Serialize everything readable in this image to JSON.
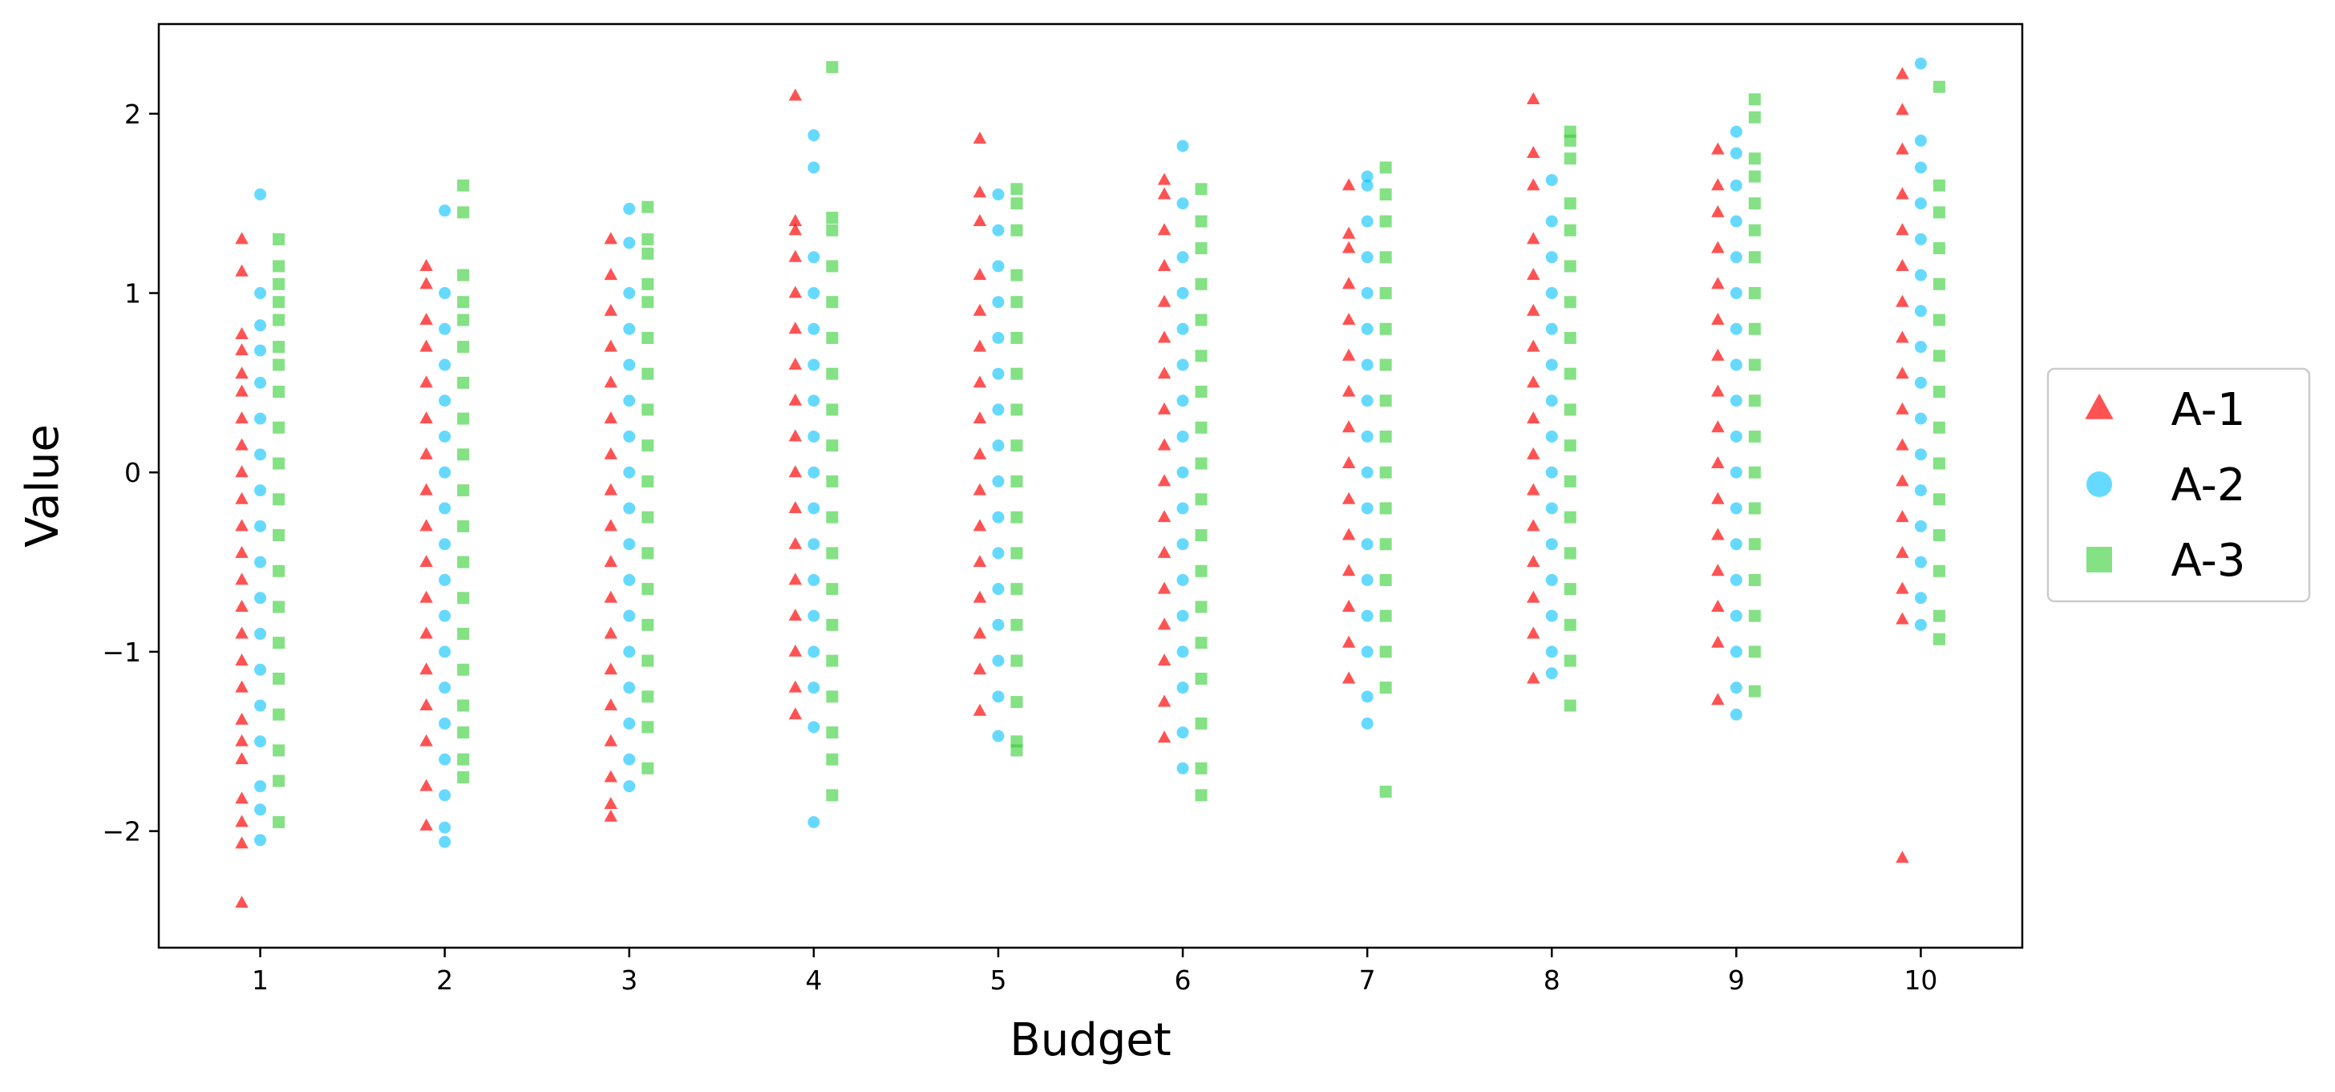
{
  "chart_data": {
    "type": "scatter",
    "title": "",
    "xlabel": "Budget",
    "ylabel": "Value",
    "x_ticks": [
      1,
      2,
      3,
      4,
      5,
      6,
      7,
      8,
      9,
      10
    ],
    "x_tick_labels": [
      "1",
      "2",
      "3",
      "4",
      "5",
      "6",
      "7",
      "8",
      "9",
      "10"
    ],
    "y_ticks": [
      2,
      1,
      0,
      -1,
      -2
    ],
    "y_tick_labels": [
      "2",
      "1",
      "0",
      "−1",
      "−2"
    ],
    "xlim": [
      0.45,
      10.55
    ],
    "ylim": [
      -2.65,
      2.5
    ],
    "grid": false,
    "legend_position": "center-right-outside",
    "series": [
      {
        "name": "A-1",
        "marker": "triangle",
        "color": "#FF0000",
        "x_offset": -0.1,
        "points": [
          {
            "x": 1,
            "y": [
              -2.4,
              -2.07,
              -1.95,
              -1.82,
              -1.6,
              -1.5,
              -1.38,
              -1.2,
              -1.05,
              -0.9,
              -0.75,
              -0.6,
              -0.45,
              -0.3,
              -0.15,
              0.0,
              0.15,
              0.3,
              0.45,
              0.55,
              0.68,
              0.77,
              1.12,
              1.3
            ]
          },
          {
            "x": 2,
            "y": [
              -1.97,
              -1.75,
              -1.5,
              -1.3,
              -1.1,
              -0.9,
              -0.7,
              -0.5,
              -0.3,
              -0.1,
              0.1,
              0.3,
              0.5,
              0.7,
              0.85,
              1.05,
              1.15
            ]
          },
          {
            "x": 3,
            "y": [
              -1.92,
              -1.85,
              -1.7,
              -1.5,
              -1.3,
              -1.1,
              -0.9,
              -0.7,
              -0.5,
              -0.3,
              -0.1,
              0.1,
              0.3,
              0.5,
              0.7,
              0.9,
              1.1,
              1.3
            ]
          },
          {
            "x": 4,
            "y": [
              -1.35,
              -1.2,
              -1.0,
              -0.8,
              -0.6,
              -0.4,
              -0.2,
              0.0,
              0.2,
              0.4,
              0.6,
              0.8,
              1.0,
              1.2,
              1.35,
              1.4,
              2.1
            ]
          },
          {
            "x": 5,
            "y": [
              -1.33,
              -1.1,
              -0.9,
              -0.7,
              -0.5,
              -0.3,
              -0.1,
              0.1,
              0.3,
              0.5,
              0.7,
              0.9,
              1.1,
              1.4,
              1.56,
              1.86
            ]
          },
          {
            "x": 6,
            "y": [
              -1.48,
              -1.28,
              -1.05,
              -0.85,
              -0.65,
              -0.45,
              -0.25,
              -0.05,
              0.15,
              0.35,
              0.55,
              0.75,
              0.95,
              1.15,
              1.35,
              1.55,
              1.63
            ]
          },
          {
            "x": 7,
            "y": [
              -1.15,
              -0.95,
              -0.75,
              -0.55,
              -0.35,
              -0.15,
              0.05,
              0.25,
              0.45,
              0.65,
              0.85,
              1.05,
              1.25,
              1.33,
              1.6
            ]
          },
          {
            "x": 8,
            "y": [
              -1.15,
              -0.9,
              -0.7,
              -0.5,
              -0.3,
              -0.1,
              0.1,
              0.3,
              0.5,
              0.7,
              0.9,
              1.1,
              1.3,
              1.6,
              1.78,
              2.08
            ]
          },
          {
            "x": 9,
            "y": [
              -1.27,
              -0.95,
              -0.75,
              -0.55,
              -0.35,
              -0.15,
              0.05,
              0.25,
              0.45,
              0.65,
              0.85,
              1.05,
              1.25,
              1.45,
              1.6,
              1.8
            ]
          },
          {
            "x": 10,
            "y": [
              -2.15,
              -0.82,
              -0.65,
              -0.45,
              -0.25,
              -0.05,
              0.15,
              0.35,
              0.55,
              0.75,
              0.95,
              1.15,
              1.35,
              1.55,
              1.8,
              2.02,
              2.22
            ]
          }
        ]
      },
      {
        "name": "A-2",
        "marker": "circle",
        "color": "#00BFFF",
        "x_offset": 0.0,
        "points": [
          {
            "x": 1,
            "y": [
              -2.05,
              -1.88,
              -1.75,
              -1.5,
              -1.3,
              -1.1,
              -0.9,
              -0.7,
              -0.5,
              -0.3,
              -0.1,
              0.1,
              0.3,
              0.5,
              0.68,
              0.82,
              1.0,
              1.55
            ]
          },
          {
            "x": 2,
            "y": [
              -2.06,
              -1.98,
              -1.8,
              -1.6,
              -1.4,
              -1.2,
              -1.0,
              -0.8,
              -0.6,
              -0.4,
              -0.2,
              0.0,
              0.2,
              0.4,
              0.6,
              0.8,
              1.0,
              1.46
            ]
          },
          {
            "x": 3,
            "y": [
              -1.75,
              -1.6,
              -1.4,
              -1.2,
              -1.0,
              -0.8,
              -0.6,
              -0.4,
              -0.2,
              0.0,
              0.2,
              0.4,
              0.6,
              0.8,
              1.0,
              1.28,
              1.47
            ]
          },
          {
            "x": 4,
            "y": [
              -1.95,
              -1.42,
              -1.2,
              -1.0,
              -0.8,
              -0.6,
              -0.4,
              -0.2,
              0.0,
              0.2,
              0.4,
              0.6,
              0.8,
              1.0,
              1.2,
              1.7,
              1.88
            ]
          },
          {
            "x": 5,
            "y": [
              -1.47,
              -1.25,
              -1.05,
              -0.85,
              -0.65,
              -0.45,
              -0.25,
              -0.05,
              0.15,
              0.35,
              0.55,
              0.75,
              0.95,
              1.15,
              1.35,
              1.55
            ]
          },
          {
            "x": 6,
            "y": [
              -1.65,
              -1.45,
              -1.2,
              -1.0,
              -0.8,
              -0.6,
              -0.4,
              -0.2,
              0.0,
              0.2,
              0.4,
              0.6,
              0.8,
              1.0,
              1.2,
              1.5,
              1.82
            ]
          },
          {
            "x": 7,
            "y": [
              -1.4,
              -1.25,
              -1.0,
              -0.8,
              -0.6,
              -0.4,
              -0.2,
              0.0,
              0.2,
              0.4,
              0.6,
              0.8,
              1.0,
              1.2,
              1.4,
              1.6,
              1.65
            ]
          },
          {
            "x": 8,
            "y": [
              -1.12,
              -1.0,
              -0.8,
              -0.6,
              -0.4,
              -0.2,
              0.0,
              0.2,
              0.4,
              0.6,
              0.8,
              1.0,
              1.2,
              1.4,
              1.63
            ]
          },
          {
            "x": 9,
            "y": [
              -1.35,
              -1.2,
              -1.0,
              -0.8,
              -0.6,
              -0.4,
              -0.2,
              0.0,
              0.2,
              0.4,
              0.6,
              0.8,
              1.0,
              1.2,
              1.4,
              1.6,
              1.78,
              1.9
            ]
          },
          {
            "x": 10,
            "y": [
              -0.85,
              -0.7,
              -0.5,
              -0.3,
              -0.1,
              0.1,
              0.3,
              0.5,
              0.7,
              0.9,
              1.1,
              1.3,
              1.5,
              1.7,
              1.85,
              2.28
            ]
          }
        ]
      },
      {
        "name": "A-3",
        "marker": "square",
        "color": "#32CD32",
        "x_offset": 0.1,
        "points": [
          {
            "x": 1,
            "y": [
              -1.95,
              -1.72,
              -1.55,
              -1.35,
              -1.15,
              -0.95,
              -0.75,
              -0.55,
              -0.35,
              -0.15,
              0.05,
              0.25,
              0.45,
              0.6,
              0.7,
              0.85,
              0.95,
              1.05,
              1.15,
              1.3
            ]
          },
          {
            "x": 2,
            "y": [
              -1.7,
              -1.6,
              -1.45,
              -1.3,
              -1.1,
              -0.9,
              -0.7,
              -0.5,
              -0.3,
              -0.1,
              0.1,
              0.3,
              0.5,
              0.7,
              0.85,
              0.95,
              1.1,
              1.45,
              1.6
            ]
          },
          {
            "x": 3,
            "y": [
              -1.65,
              -1.42,
              -1.25,
              -1.05,
              -0.85,
              -0.65,
              -0.45,
              -0.25,
              -0.05,
              0.15,
              0.35,
              0.55,
              0.75,
              0.95,
              1.05,
              1.22,
              1.3,
              1.48
            ]
          },
          {
            "x": 4,
            "y": [
              -1.8,
              -1.6,
              -1.45,
              -1.25,
              -1.05,
              -0.85,
              -0.65,
              -0.45,
              -0.25,
              -0.05,
              0.15,
              0.35,
              0.55,
              0.75,
              0.95,
              1.15,
              1.35,
              1.42,
              2.26
            ]
          },
          {
            "x": 5,
            "y": [
              -1.55,
              -1.5,
              -1.28,
              -1.05,
              -0.85,
              -0.65,
              -0.45,
              -0.25,
              -0.05,
              0.15,
              0.35,
              0.55,
              0.75,
              0.95,
              1.1,
              1.35,
              1.5,
              1.58
            ]
          },
          {
            "x": 6,
            "y": [
              -1.8,
              -1.65,
              -1.4,
              -1.15,
              -0.95,
              -0.75,
              -0.55,
              -0.35,
              -0.15,
              0.05,
              0.25,
              0.45,
              0.65,
              0.85,
              1.05,
              1.25,
              1.4,
              1.58
            ]
          },
          {
            "x": 7,
            "y": [
              -1.78,
              -1.2,
              -1.0,
              -0.8,
              -0.6,
              -0.4,
              -0.2,
              0.0,
              0.2,
              0.4,
              0.6,
              0.8,
              1.0,
              1.2,
              1.4,
              1.55,
              1.7
            ]
          },
          {
            "x": 8,
            "y": [
              -1.3,
              -1.05,
              -0.85,
              -0.65,
              -0.45,
              -0.25,
              -0.05,
              0.15,
              0.35,
              0.55,
              0.75,
              0.95,
              1.15,
              1.35,
              1.5,
              1.75,
              1.85,
              1.9
            ]
          },
          {
            "x": 9,
            "y": [
              -1.22,
              -1.0,
              -0.8,
              -0.6,
              -0.4,
              -0.2,
              0.0,
              0.2,
              0.4,
              0.6,
              0.8,
              1.0,
              1.2,
              1.35,
              1.5,
              1.65,
              1.75,
              1.98,
              2.08
            ]
          },
          {
            "x": 10,
            "y": [
              -0.93,
              -0.8,
              -0.55,
              -0.35,
              -0.15,
              0.05,
              0.25,
              0.45,
              0.65,
              0.85,
              1.05,
              1.25,
              1.45,
              1.6,
              2.15
            ]
          }
        ]
      }
    ]
  }
}
